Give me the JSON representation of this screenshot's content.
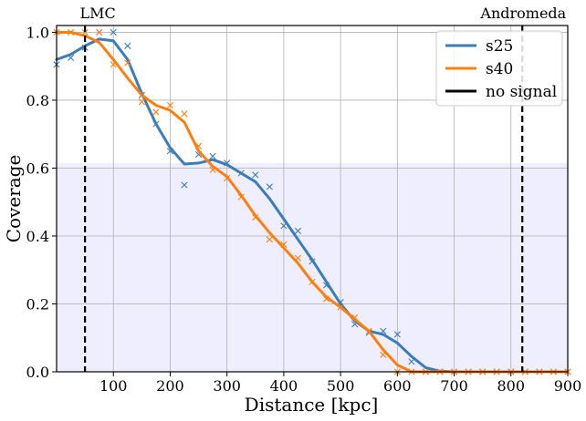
{
  "chart_data": {
    "type": "line",
    "title": "",
    "xlabel": "Distance [kpc]",
    "ylabel": "Coverage",
    "xlim": [
      0,
      900
    ],
    "ylim": [
      0,
      1.02
    ],
    "xticks": [
      100,
      200,
      300,
      400,
      500,
      600,
      700,
      800,
      900
    ],
    "yticks": [
      0.0,
      0.2,
      0.4,
      0.6,
      0.8,
      1.0
    ],
    "grid": true,
    "legend_position": "top-right",
    "shaded_band": {
      "y_from": 0,
      "y_to": 0.615,
      "color": "#eeeeff"
    },
    "annotations": [
      {
        "text": "LMC",
        "x": 50,
        "style": "vertical-dashed",
        "series": "no signal"
      },
      {
        "text": "Andromeda",
        "x": 820,
        "style": "vertical-dashed",
        "series": "no signal"
      }
    ],
    "series": [
      {
        "name": "s25",
        "color": "#3a7db8",
        "line": {
          "x": [
            0,
            25,
            50,
            75,
            100,
            125,
            150,
            175,
            200,
            225,
            250,
            275,
            300,
            325,
            350,
            375,
            400,
            425,
            450,
            475,
            500,
            525,
            550,
            575,
            600,
            625,
            650,
            675,
            700,
            725,
            750,
            775,
            800,
            825,
            850,
            875,
            900
          ],
          "y": [
            0.92,
            0.935,
            0.96,
            0.98,
            0.975,
            0.92,
            0.82,
            0.73,
            0.66,
            0.612,
            0.615,
            0.625,
            0.61,
            0.585,
            0.56,
            0.51,
            0.45,
            0.39,
            0.33,
            0.265,
            0.2,
            0.15,
            0.12,
            0.11,
            0.085,
            0.045,
            0.012,
            0.002,
            0,
            0,
            0,
            0,
            0,
            0,
            0,
            0,
            0
          ]
        },
        "markers": {
          "x": [
            0,
            25,
            50,
            75,
            100,
            125,
            150,
            175,
            200,
            225,
            250,
            275,
            300,
            325,
            350,
            375,
            400,
            425,
            450,
            475,
            500,
            525,
            550,
            575,
            600,
            625,
            650,
            675,
            700,
            725,
            750,
            775,
            800,
            825,
            850,
            875,
            900
          ],
          "y": [
            0.905,
            0.925,
            0.955,
            1.0,
            1.0,
            0.96,
            0.815,
            0.73,
            0.65,
            0.55,
            0.64,
            0.635,
            0.615,
            0.585,
            0.58,
            0.545,
            0.43,
            0.415,
            0.325,
            0.255,
            0.205,
            0.14,
            0.115,
            0.12,
            0.11,
            0.03,
            0.0,
            0.0,
            0.0,
            0.0,
            0.0,
            0.0,
            0.0,
            0.0,
            0.0,
            0.0,
            0.0
          ]
        }
      },
      {
        "name": "s40",
        "color": "#ff7f0e",
        "line": {
          "x": [
            0,
            25,
            50,
            75,
            100,
            125,
            150,
            175,
            200,
            225,
            250,
            275,
            300,
            325,
            350,
            375,
            400,
            425,
            450,
            475,
            500,
            525,
            550,
            575,
            600,
            625,
            650,
            675,
            700,
            725,
            750,
            775,
            800,
            825,
            850,
            875,
            900
          ],
          "y": [
            1.0,
            1.0,
            0.99,
            0.97,
            0.92,
            0.865,
            0.815,
            0.785,
            0.77,
            0.735,
            0.65,
            0.605,
            0.575,
            0.52,
            0.46,
            0.41,
            0.365,
            0.32,
            0.265,
            0.22,
            0.19,
            0.155,
            0.12,
            0.065,
            0.02,
            0.0,
            0.0,
            0.0,
            0.0,
            0.0,
            0.0,
            0.0,
            0.0,
            0.0,
            0.0,
            0.0,
            0.0
          ]
        },
        "markers": {
          "x": [
            0,
            25,
            50,
            75,
            100,
            125,
            150,
            175,
            200,
            225,
            250,
            275,
            300,
            325,
            350,
            375,
            400,
            425,
            450,
            475,
            500,
            525,
            550,
            575,
            600,
            625,
            650,
            675,
            700,
            725,
            750,
            775,
            800,
            825,
            850,
            875,
            900
          ],
          "y": [
            1.0,
            1.0,
            1.0,
            1.0,
            0.905,
            0.91,
            0.795,
            0.765,
            0.785,
            0.76,
            0.665,
            0.595,
            0.57,
            0.515,
            0.455,
            0.39,
            0.375,
            0.335,
            0.265,
            0.215,
            0.19,
            0.16,
            0.12,
            0.05,
            0.0,
            0.0,
            0.0,
            0.0,
            0.0,
            0.0,
            0.0,
            0.0,
            0.0,
            0.0,
            0.0,
            0.0,
            0.0
          ]
        }
      },
      {
        "name": "no signal",
        "color": "#000000",
        "style": "dashed"
      }
    ]
  }
}
